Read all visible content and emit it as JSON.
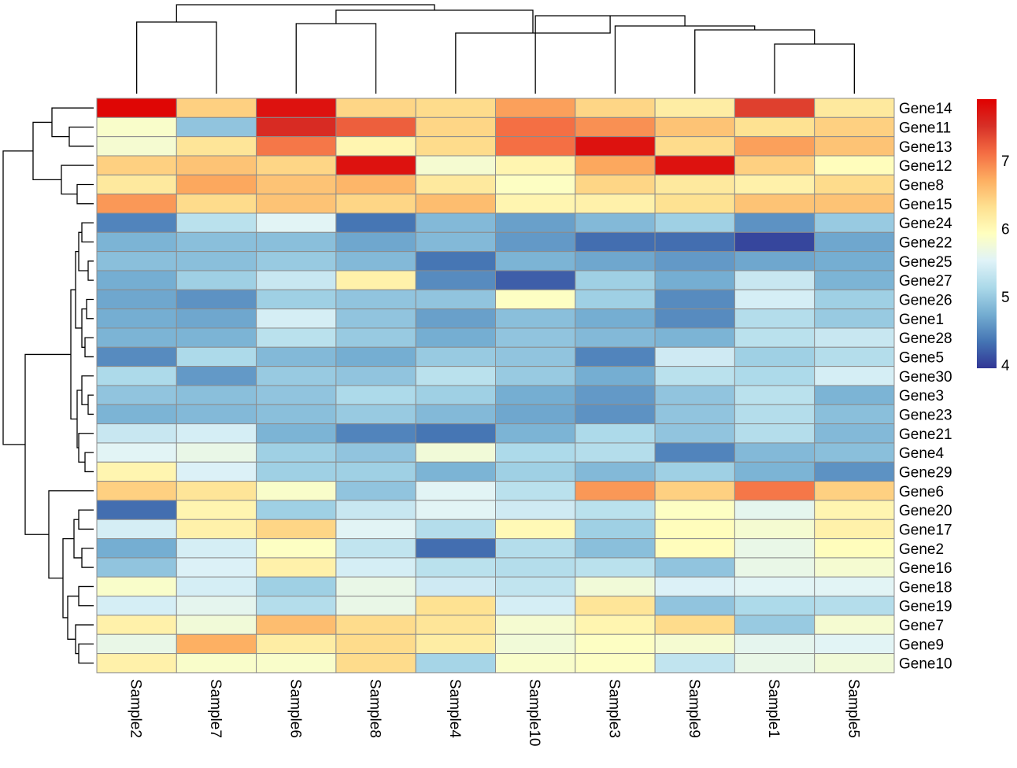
{
  "chart_data": {
    "type": "heatmap",
    "title": "",
    "xlabel": "",
    "ylabel": "",
    "columns": [
      "Sample2",
      "Sample7",
      "Sample6",
      "Sample8",
      "Sample4",
      "Sample10",
      "Sample3",
      "Sample9",
      "Sample1",
      "Sample5"
    ],
    "rows": [
      "Gene14",
      "Gene11",
      "Gene13",
      "Gene12",
      "Gene8",
      "Gene15",
      "Gene24",
      "Gene22",
      "Gene25",
      "Gene27",
      "Gene26",
      "Gene1",
      "Gene28",
      "Gene5",
      "Gene30",
      "Gene3",
      "Gene23",
      "Gene21",
      "Gene4",
      "Gene29",
      "Gene6",
      "Gene20",
      "Gene17",
      "Gene2",
      "Gene16",
      "Gene18",
      "Gene19",
      "Gene7",
      "Gene9",
      "Gene10"
    ],
    "values": [
      [
        7.85,
        6.45,
        7.75,
        6.4,
        6.35,
        6.8,
        6.4,
        6.15,
        7.4,
        6.2
      ],
      [
        5.85,
        4.95,
        7.55,
        7.2,
        6.4,
        7.1,
        6.9,
        6.55,
        6.3,
        6.45
      ],
      [
        5.8,
        6.25,
        7.05,
        6.05,
        6.35,
        7.1,
        7.75,
        6.35,
        6.8,
        6.55
      ],
      [
        6.45,
        6.55,
        6.4,
        7.75,
        5.8,
        6.05,
        6.75,
        7.75,
        6.45,
        5.95
      ],
      [
        6.2,
        6.75,
        6.55,
        6.65,
        6.2,
        5.9,
        6.4,
        6.2,
        6.1,
        6.35
      ],
      [
        6.85,
        6.35,
        6.55,
        6.4,
        6.6,
        6.05,
        6.1,
        6.3,
        6.55,
        6.55
      ],
      [
        4.45,
        5.25,
        5.55,
        4.35,
        4.85,
        4.65,
        4.85,
        5.05,
        4.55,
        5.0
      ],
      [
        4.8,
        4.9,
        4.9,
        4.7,
        4.85,
        4.6,
        4.3,
        4.3,
        4.05,
        4.7
      ],
      [
        4.9,
        4.9,
        5.0,
        4.85,
        4.35,
        4.8,
        4.7,
        4.6,
        4.7,
        4.75
      ],
      [
        4.75,
        5.05,
        5.35,
        6.1,
        4.5,
        4.2,
        5.05,
        4.75,
        5.35,
        4.8
      ],
      [
        4.7,
        4.55,
        5.05,
        4.95,
        4.95,
        5.9,
        5.05,
        4.5,
        5.45,
        5.05
      ],
      [
        4.75,
        4.7,
        5.45,
        4.95,
        4.65,
        4.9,
        4.75,
        4.5,
        5.2,
        5.0
      ],
      [
        4.8,
        4.8,
        5.25,
        5.0,
        4.75,
        4.95,
        4.85,
        4.8,
        5.25,
        5.35
      ],
      [
        4.5,
        5.15,
        4.85,
        4.75,
        5.0,
        4.95,
        4.45,
        5.4,
        5.05,
        5.2
      ],
      [
        5.15,
        4.6,
        5.0,
        4.95,
        5.25,
        5.0,
        4.75,
        5.25,
        5.15,
        5.45
      ],
      [
        4.95,
        4.9,
        4.95,
        5.15,
        5.05,
        4.75,
        4.6,
        4.95,
        5.25,
        4.8
      ],
      [
        4.8,
        4.85,
        4.9,
        5.0,
        4.85,
        4.7,
        4.55,
        4.95,
        5.2,
        4.9
      ],
      [
        5.35,
        5.45,
        4.8,
        4.45,
        4.35,
        4.8,
        5.15,
        4.95,
        5.2,
        4.85
      ],
      [
        5.55,
        5.65,
        5.05,
        4.95,
        5.75,
        5.15,
        5.2,
        4.45,
        4.85,
        4.9
      ],
      [
        6.05,
        5.5,
        5.05,
        5.05,
        4.8,
        5.05,
        4.85,
        5.05,
        4.8,
        4.55
      ],
      [
        6.45,
        6.25,
        5.85,
        4.95,
        5.55,
        5.25,
        6.85,
        6.45,
        7.05,
        6.45
      ],
      [
        4.3,
        6.05,
        5.05,
        5.35,
        5.55,
        5.4,
        5.25,
        5.9,
        5.6,
        6.05
      ],
      [
        5.45,
        6.1,
        6.4,
        5.55,
        5.2,
        6.0,
        5.05,
        5.95,
        5.8,
        6.1
      ],
      [
        4.75,
        5.45,
        5.9,
        5.3,
        4.3,
        5.2,
        4.9,
        5.95,
        5.65,
        5.95
      ],
      [
        4.95,
        5.5,
        6.1,
        5.45,
        5.25,
        5.2,
        5.25,
        4.95,
        5.65,
        5.8
      ],
      [
        5.85,
        5.45,
        5.05,
        5.65,
        5.4,
        5.3,
        5.75,
        5.5,
        5.55,
        5.55
      ],
      [
        5.45,
        5.6,
        5.2,
        5.65,
        6.3,
        5.45,
        6.25,
        4.95,
        5.15,
        5.2
      ],
      [
        6.1,
        5.75,
        6.6,
        6.35,
        6.25,
        5.8,
        6.05,
        6.35,
        5.0,
        5.8
      ],
      [
        5.65,
        6.7,
        6.15,
        6.35,
        6.15,
        5.75,
        5.9,
        5.8,
        5.6,
        5.55
      ],
      [
        6.1,
        5.85,
        5.85,
        6.35,
        5.1,
        5.85,
        5.9,
        5.3,
        5.65,
        5.75
      ]
    ],
    "colorbar": {
      "min": 3.95,
      "max": 7.9,
      "ticks": [
        4,
        5,
        6,
        7
      ],
      "palette": [
        "#313695",
        "#4575b4",
        "#74add1",
        "#abd9e9",
        "#e0f3f8",
        "#ffffbf",
        "#fee090",
        "#fdae61",
        "#f46d43",
        "#d73027",
        "#e00000"
      ]
    },
    "grid": true,
    "legend_position": "right",
    "dendrogram_rows": true,
    "dendrogram_columns": true
  }
}
